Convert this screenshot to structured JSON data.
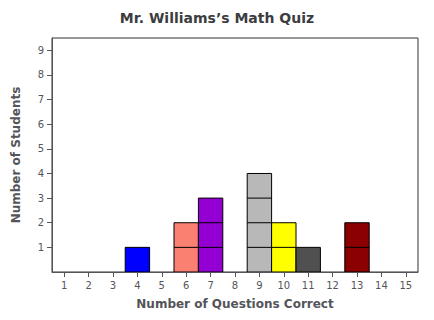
{
  "chart_data": {
    "type": "bar",
    "title": "Mr. Williams’s Math Quiz",
    "x_label": "Number of Questions Correct",
    "y_label": "Number of Students",
    "x": [
      4,
      6,
      7,
      9,
      10,
      11,
      13
    ],
    "values": [
      1,
      2,
      3,
      4,
      2,
      1,
      2
    ],
    "colors": [
      "#0000FF",
      "#FA8072",
      "#9400D3",
      "#B8B8B8",
      "#FFFF00",
      "#505050",
      "#8B0000"
    ],
    "xlim": [
      0.5,
      15.5
    ],
    "xticks": [
      1,
      2,
      3,
      4,
      5,
      6,
      7,
      8,
      9,
      10,
      11,
      12,
      13,
      14,
      15
    ],
    "ylim": [
      0,
      9.5
    ],
    "yticks": [
      1,
      2,
      3,
      4,
      5,
      6,
      7,
      8,
      9
    ],
    "grid": false
  }
}
